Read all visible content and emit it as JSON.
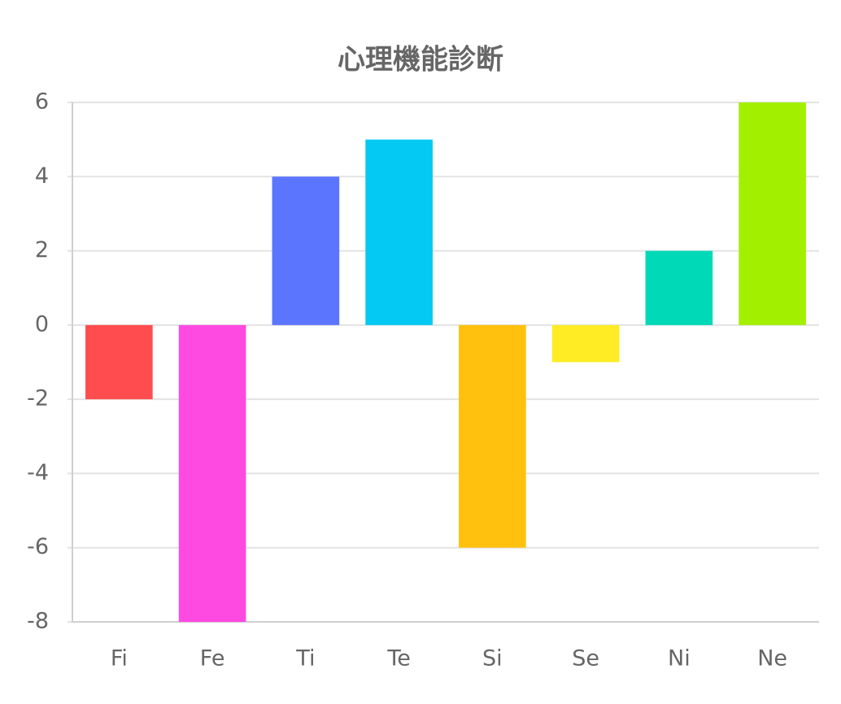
{
  "chart_data": {
    "type": "bar",
    "title": "心理機能診断",
    "categories": [
      "Fi",
      "Fe",
      "Ti",
      "Te",
      "Si",
      "Se",
      "Ni",
      "Ne"
    ],
    "values": [
      -2,
      -8,
      4,
      5,
      -6,
      -1,
      2,
      6
    ],
    "colors": [
      "#ff4d4f",
      "#ff4ae2",
      "#5b75ff",
      "#04c9f3",
      "#ffc10e",
      "#ffec24",
      "#00d9b8",
      "#a3ef00"
    ],
    "ylim": [
      -8,
      6
    ],
    "yticks": [
      -8,
      -6,
      -4,
      -2,
      0,
      2,
      4,
      6
    ],
    "grid": true
  }
}
